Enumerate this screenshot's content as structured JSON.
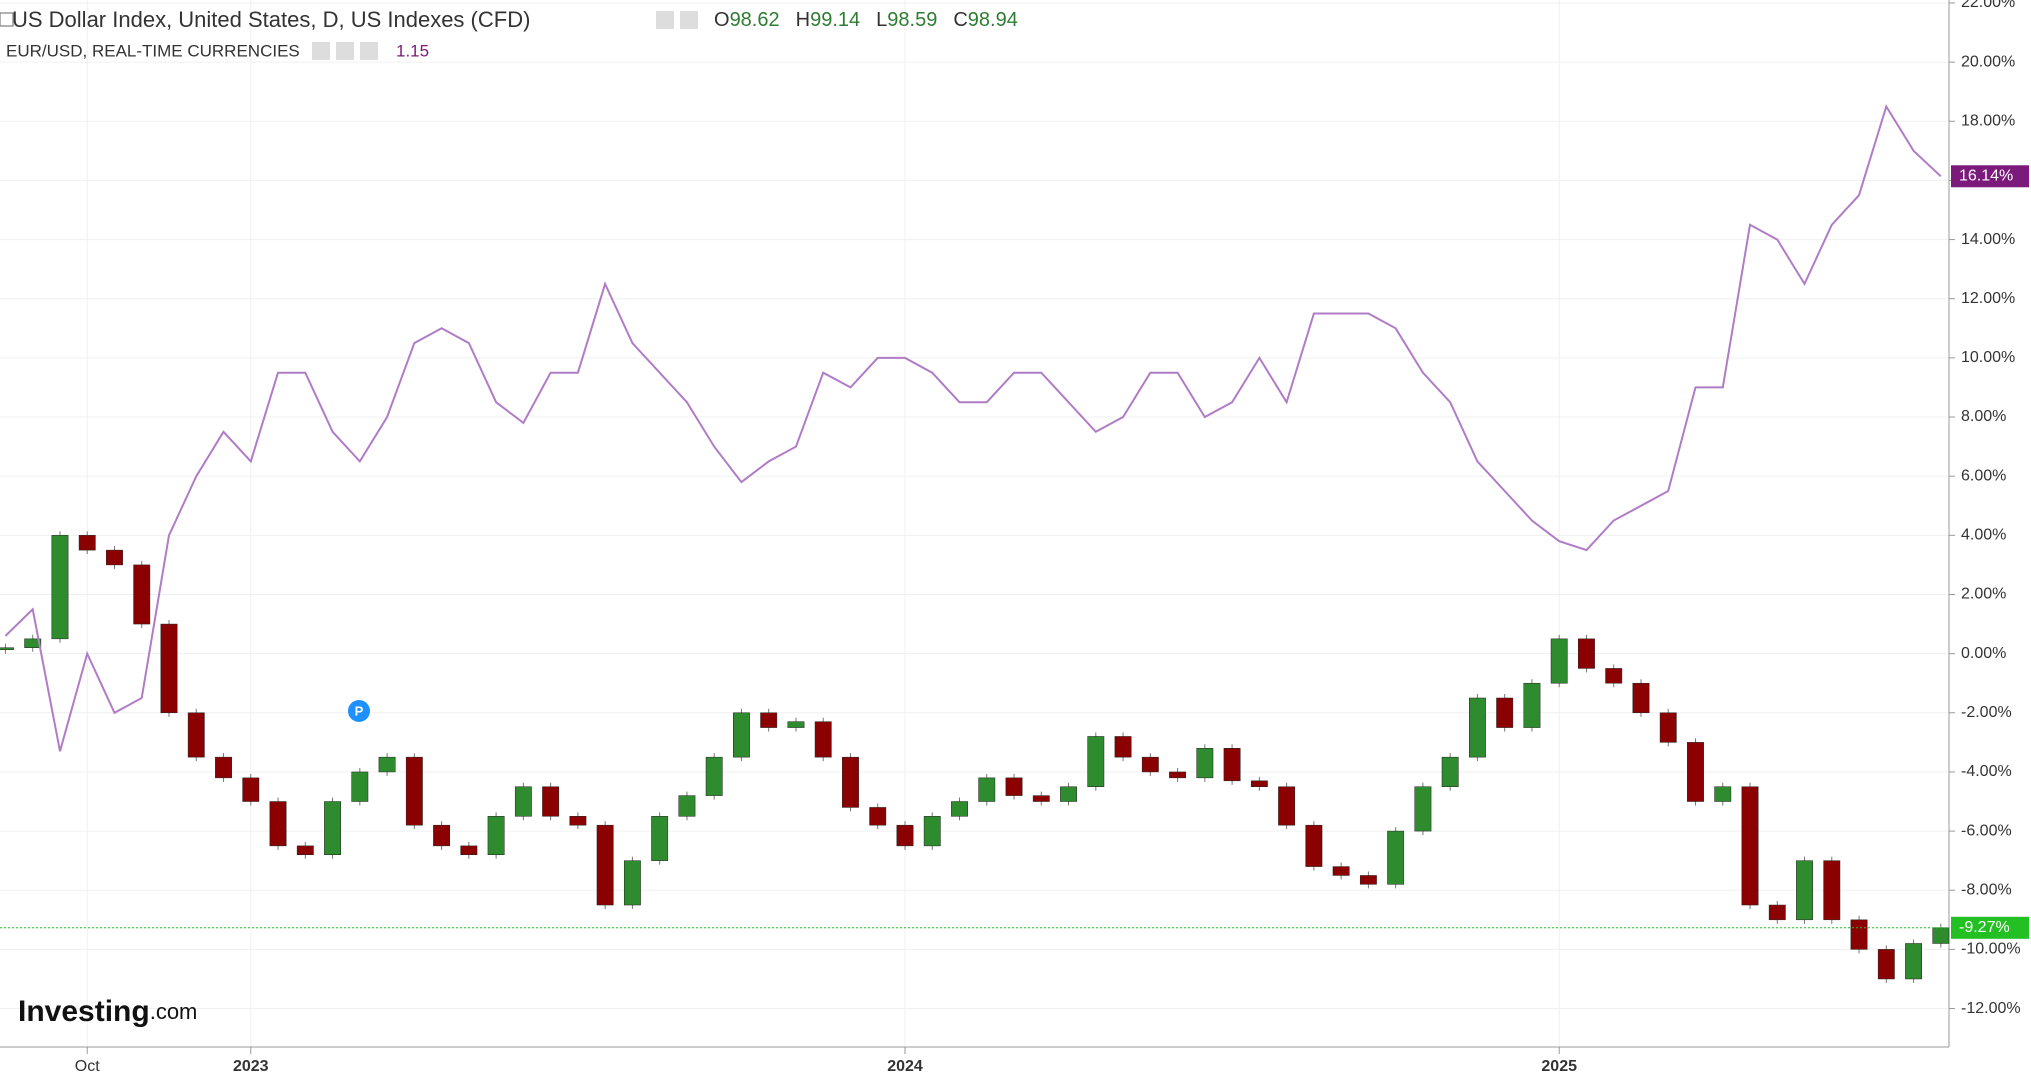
{
  "chart_data": {
    "type": "combo",
    "annotation": "P",
    "brand": [
      "Investing",
      ".com"
    ],
    "quote": [
      {
        "label": "O",
        "value": 98.62
      },
      {
        "label": "H",
        "value": 99.14
      },
      {
        "label": "L",
        "value": 98.59
      },
      {
        "label": "C",
        "value": 98.94
      }
    ],
    "xlim": [
      -0.2,
      71.3
    ],
    "xticks": [
      {
        "value": 3,
        "label": "Oct"
      },
      {
        "value": 9,
        "label": "2023"
      },
      {
        "value": 33,
        "label": "2024"
      },
      {
        "value": 57,
        "label": "2025"
      }
    ],
    "ylim": [
      -13.3,
      22.1
    ],
    "yticks": [
      {
        "value": 22,
        "label": "22.00%"
      },
      {
        "value": 20,
        "label": "20.00%"
      },
      {
        "value": 18,
        "label": "18.00%"
      },
      {
        "value": 16,
        "label": "16.00%"
      },
      {
        "value": 14,
        "label": "14.00%"
      },
      {
        "value": 12,
        "label": "12.00%"
      },
      {
        "value": 10,
        "label": "10.00%"
      },
      {
        "value": 8,
        "label": "8.00%"
      },
      {
        "value": 6,
        "label": "6.00%"
      },
      {
        "value": 4,
        "label": "4.00%"
      },
      {
        "value": 2,
        "label": "2.00%"
      },
      {
        "value": 0,
        "label": "0.00%"
      },
      {
        "value": -2,
        "label": "-2.00%"
      },
      {
        "value": -4,
        "label": "-4.00%"
      },
      {
        "value": -6,
        "label": "-6.00%"
      },
      {
        "value": -8,
        "label": "-8.00%"
      },
      {
        "value": -10,
        "label": "-10.00%"
      },
      {
        "value": -12,
        "label": "-12.00%"
      }
    ],
    "grid": true,
    "series": [
      {
        "name": "US Dollar Index, United States, D, US Indexes (CFD)",
        "type": "candlestick",
        "color": "#2e8b2e",
        "down_color": "#8b0000",
        "values": [
          0.2,
          0.5,
          4.0,
          3.5,
          3.0,
          1.0,
          -2.0,
          -3.5,
          -4.2,
          -5.0,
          -6.5,
          -6.8,
          -5.0,
          -4.0,
          -3.5,
          -5.8,
          -6.5,
          -6.8,
          -5.5,
          -4.5,
          -5.5,
          -5.8,
          -8.5,
          -7.0,
          -5.5,
          -4.8,
          -3.5,
          -2.0,
          -2.5,
          -2.3,
          -3.5,
          -5.2,
          -5.8,
          -6.5,
          -5.5,
          -5.0,
          -4.2,
          -4.8,
          -5.0,
          -4.5,
          -2.8,
          -3.5,
          -4.0,
          -4.2,
          -3.2,
          -4.3,
          -4.5,
          -5.8,
          -7.2,
          -7.5,
          -7.8,
          -6.0,
          -4.5,
          -3.5,
          -1.5,
          -2.5,
          -1.0,
          0.5,
          -0.5,
          -1.0,
          -2.0,
          -3.0,
          -5.0,
          -4.5,
          -8.5,
          -9.0,
          -7.0,
          -9.0,
          -10.0,
          -11.0,
          -9.8,
          -9.27
        ],
        "last_label": {
          "value": -9.27,
          "label": "-9.27%"
        },
        "label_color": "#22c022"
      },
      {
        "name": "EUR/USD, REAL-TIME CURRENCIES",
        "type": "line",
        "color": "#b07cc6",
        "last": 1.15,
        "values": [
          0.6,
          1.5,
          -3.3,
          0.0,
          -2.0,
          -1.5,
          4.0,
          6.0,
          7.5,
          6.5,
          9.5,
          9.5,
          7.5,
          6.5,
          8.0,
          10.5,
          11.0,
          10.5,
          8.5,
          7.8,
          9.5,
          9.5,
          12.5,
          10.5,
          9.5,
          8.5,
          7.0,
          5.8,
          6.5,
          7.0,
          9.5,
          9.0,
          10.0,
          10.0,
          9.5,
          8.5,
          8.5,
          9.5,
          9.5,
          8.5,
          7.5,
          8.0,
          9.5,
          9.5,
          8.0,
          8.5,
          10.0,
          8.5,
          11.5,
          11.5,
          11.5,
          11.0,
          9.5,
          8.5,
          6.5,
          5.5,
          4.5,
          3.8,
          3.5,
          4.5,
          5.0,
          5.5,
          9.0,
          9.0,
          14.5,
          14.0,
          12.5,
          14.5,
          15.5,
          18.5,
          17.0,
          16.14
        ],
        "last_label": {
          "value": 16.14,
          "label": "16.14%"
        },
        "label_color": "#7b1a7b"
      }
    ]
  }
}
